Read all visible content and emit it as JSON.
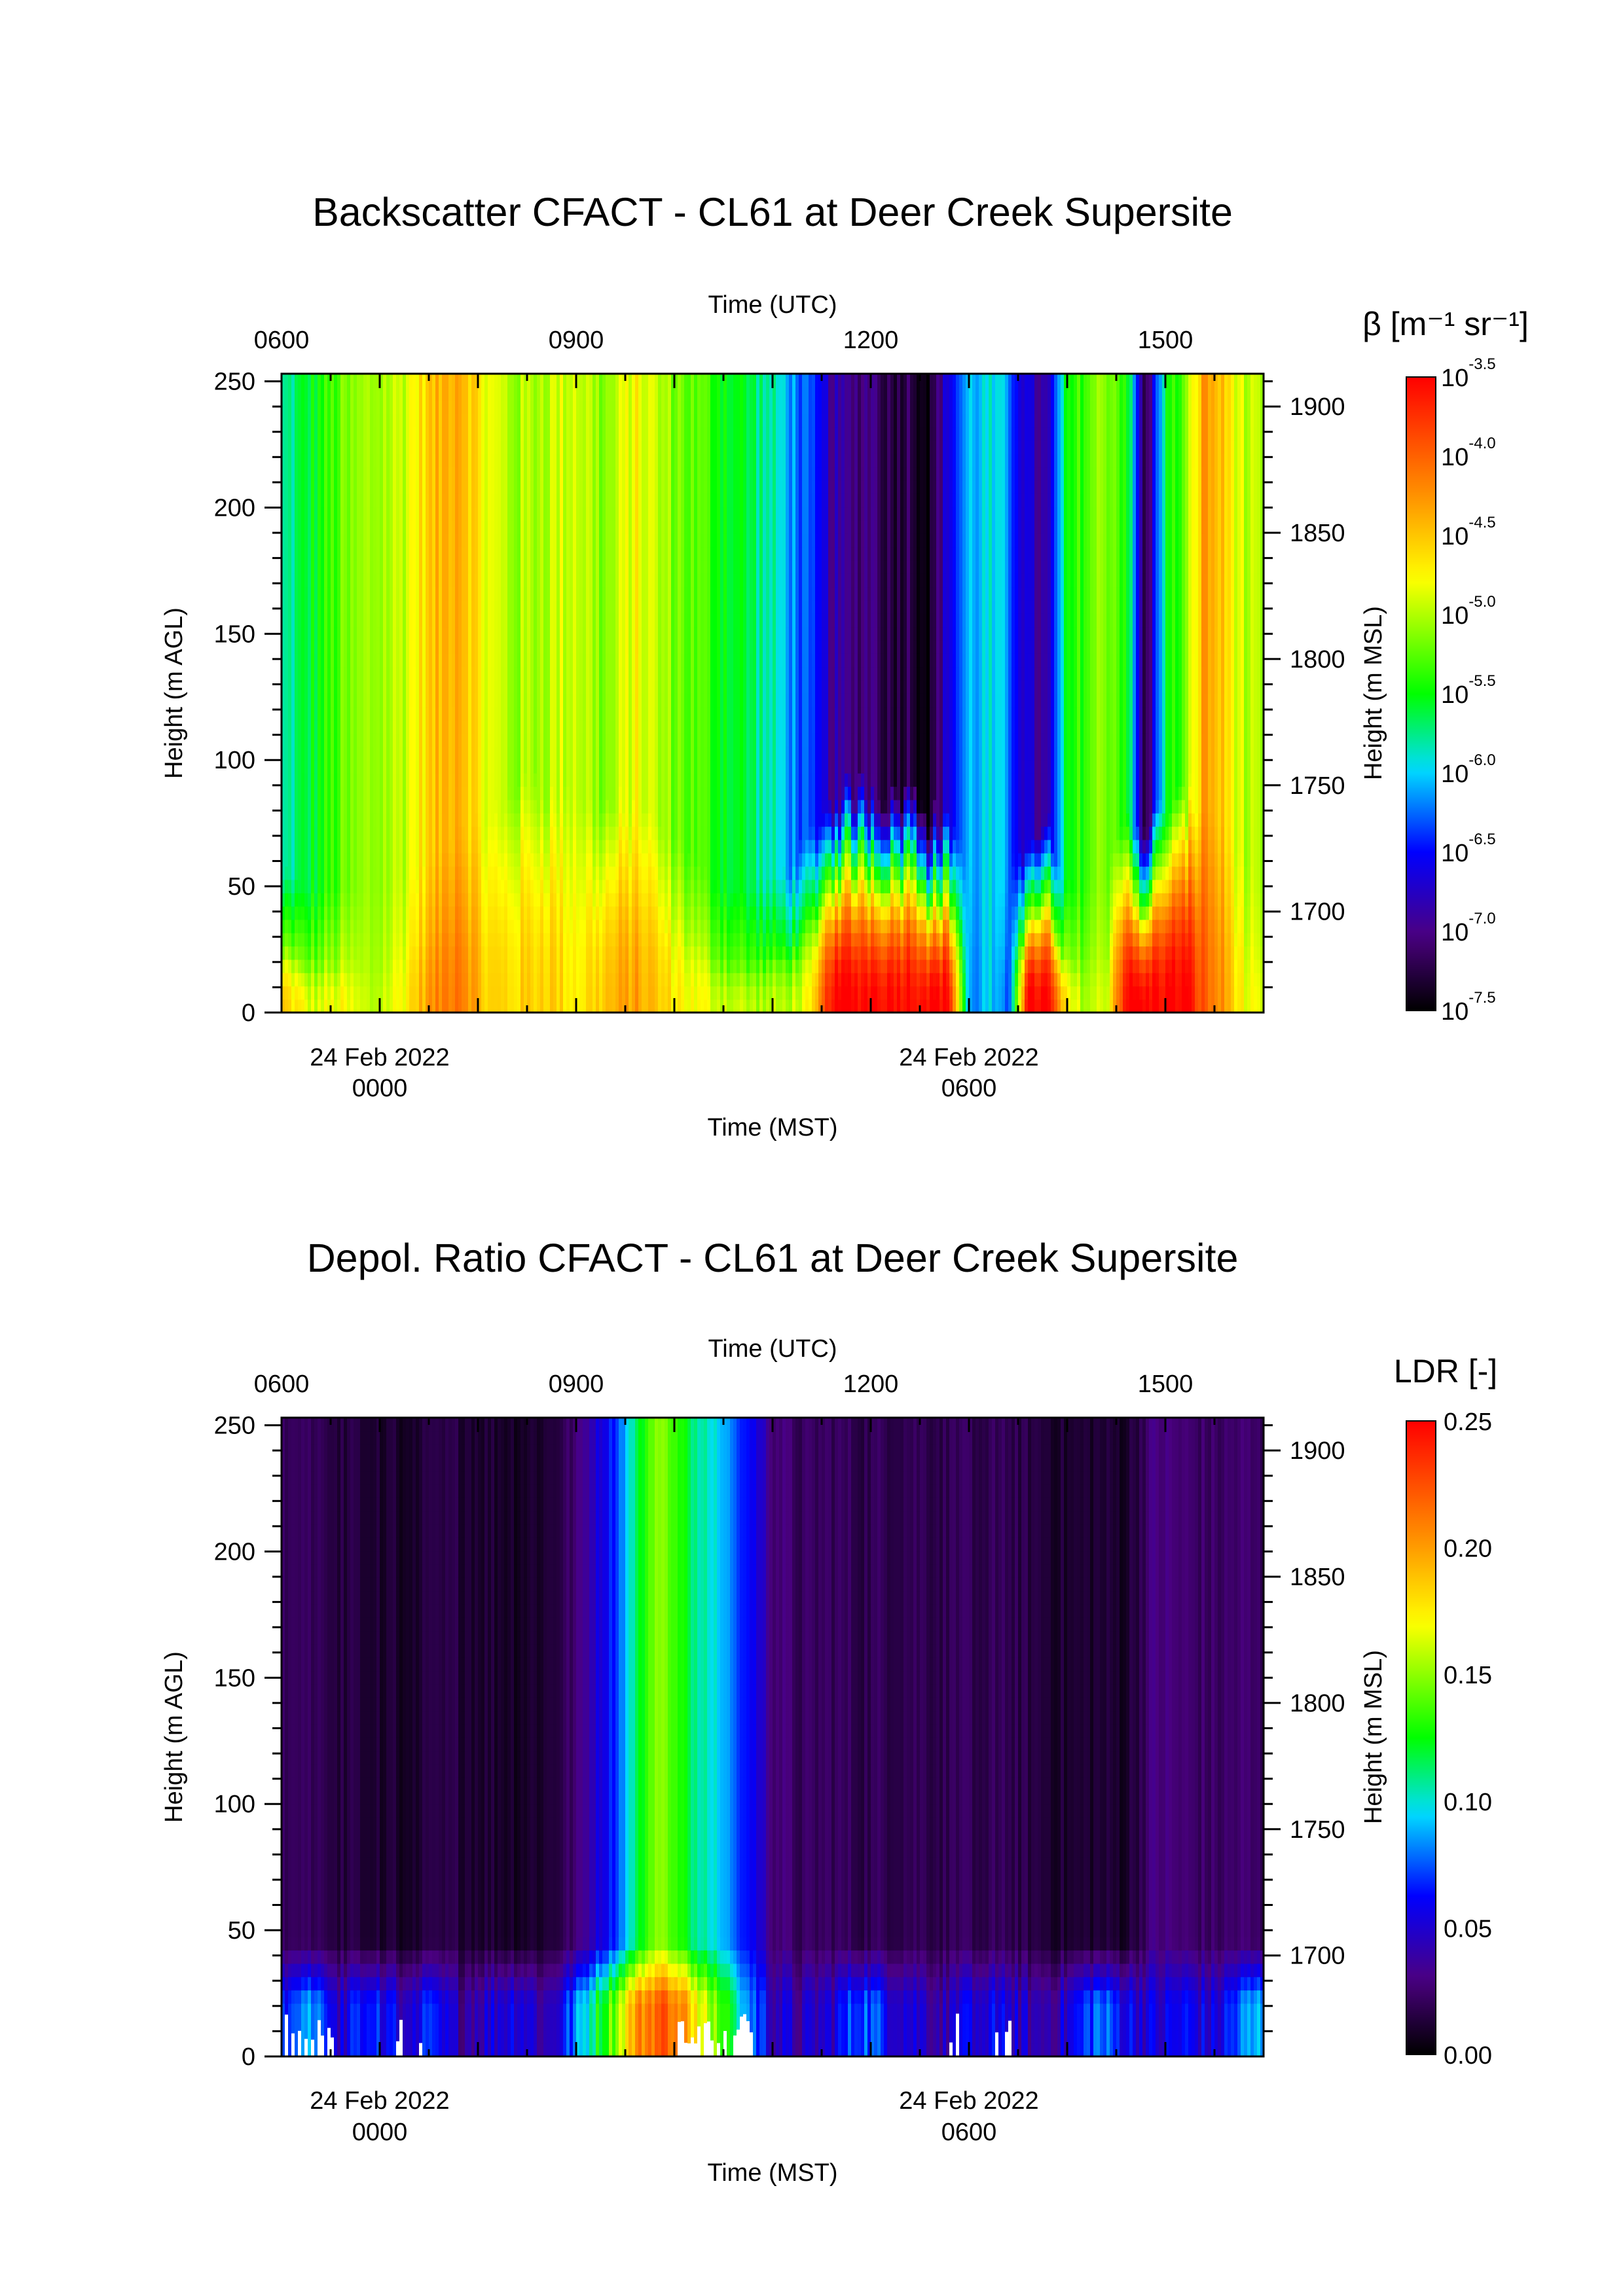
{
  "chart_data": [
    {
      "type": "heatmap",
      "title": "Backscatter CFACT - CL61 at Deer Creek Supersite",
      "xlabel_top": "Time (UTC)",
      "xlabel_bottom": "Time (MST)",
      "ylabel_left": "Height (m AGL)",
      "ylabel_right": "Height (m MSL)",
      "x_utc_range": [
        6.0,
        16.0
      ],
      "ylim": [
        0,
        253
      ],
      "top_ticks": [
        {
          "x": 6,
          "label": "0600"
        },
        {
          "x": 9,
          "label": "0900"
        },
        {
          "x": 12,
          "label": "1200"
        },
        {
          "x": 15,
          "label": "1500"
        }
      ],
      "bottom_ticks": [
        {
          "x": 7,
          "line1": "24 Feb 2022",
          "line2": "0000"
        },
        {
          "x": 13,
          "line1": "24 Feb 2022",
          "line2": "0600"
        }
      ],
      "left_ticks": [
        {
          "y": 0,
          "label": "0"
        },
        {
          "y": 50,
          "label": "50"
        },
        {
          "y": 100,
          "label": "100"
        },
        {
          "y": 150,
          "label": "150"
        },
        {
          "y": 200,
          "label": "200"
        },
        {
          "y": 250,
          "label": "250"
        }
      ],
      "right_ticks": [
        {
          "y": 40,
          "label": "1700"
        },
        {
          "y": 90,
          "label": "1750"
        },
        {
          "y": 140,
          "label": "1800"
        },
        {
          "y": 190,
          "label": "1850"
        },
        {
          "y": 240,
          "label": "1900"
        }
      ],
      "colorbar": {
        "label": "β [m⁻¹ sr⁻¹]",
        "scale": "log",
        "range": [
          -7.5,
          -3.5
        ],
        "ticks": [
          {
            "v": -3.5,
            "base": "10",
            "exp": "-3.5"
          },
          {
            "v": -4.0,
            "base": "10",
            "exp": "-4.0"
          },
          {
            "v": -4.5,
            "base": "10",
            "exp": "-4.5"
          },
          {
            "v": -5.0,
            "base": "10",
            "exp": "-5.0"
          },
          {
            "v": -5.5,
            "base": "10",
            "exp": "-5.5"
          },
          {
            "v": -6.0,
            "base": "10",
            "exp": "-6.0"
          },
          {
            "v": -6.5,
            "base": "10",
            "exp": "-6.5"
          },
          {
            "v": -7.0,
            "base": "10",
            "exp": "-7.0"
          },
          {
            "v": -7.5,
            "base": "10",
            "exp": "-7.5"
          }
        ]
      },
      "profile_utc_hours": [
        6.0,
        6.3,
        6.6,
        6.9,
        7.2,
        7.5,
        7.8,
        8.1,
        8.4,
        8.7,
        9.0,
        9.3,
        9.6,
        9.9,
        10.2,
        10.5,
        10.8,
        11.1,
        11.4,
        11.6,
        11.8,
        12.0,
        12.2,
        12.4,
        12.6,
        12.8,
        13.0,
        13.2,
        13.4,
        13.6,
        13.8,
        14.0,
        14.2,
        14.4,
        14.6,
        14.8,
        15.0,
        15.2,
        15.4,
        15.6,
        15.8,
        16.0
      ],
      "aloft_log_beta": [
        -5.9,
        -5.6,
        -5.3,
        -5.1,
        -5.0,
        -4.6,
        -4.3,
        -4.9,
        -5.1,
        -5.0,
        -4.9,
        -5.2,
        -4.8,
        -5.1,
        -5.3,
        -5.5,
        -5.7,
        -6.0,
        -6.5,
        -6.9,
        -7.1,
        -7.0,
        -7.3,
        -7.2,
        -7.5,
        -6.6,
        -6.1,
        -6.0,
        -6.2,
        -6.8,
        -7.0,
        -5.6,
        -5.3,
        -5.1,
        -5.4,
        -7.4,
        -5.6,
        -5.3,
        -4.3,
        -4.6,
        -5.0,
        -5.2
      ],
      "surface_log_beta": [
        -4.5,
        -4.9,
        -4.8,
        -5.0,
        -4.8,
        -4.3,
        -4.0,
        -4.6,
        -4.6,
        -4.5,
        -4.7,
        -4.5,
        -4.3,
        -4.6,
        -4.8,
        -4.9,
        -5.0,
        -5.0,
        -4.8,
        -3.5,
        -3.5,
        -3.5,
        -3.5,
        -3.5,
        -3.5,
        -3.5,
        -6.2,
        -6.0,
        -6.4,
        -3.5,
        -3.5,
        -4.8,
        -5.0,
        -4.9,
        -3.5,
        -3.5,
        -3.5,
        -3.5,
        -4.0,
        -4.3,
        -4.8,
        -5.0
      ],
      "surface_layer_top_m": [
        25,
        20,
        20,
        20,
        25,
        30,
        40,
        45,
        60,
        60,
        50,
        55,
        50,
        40,
        30,
        20,
        20,
        25,
        40,
        55,
        60,
        60,
        55,
        60,
        50,
        45,
        30,
        25,
        25,
        40,
        45,
        20,
        25,
        25,
        45,
        45,
        50,
        55,
        55,
        45,
        30,
        25
      ]
    },
    {
      "type": "heatmap",
      "title": "Depol. Ratio CFACT - CL61 at Deer Creek Supersite",
      "xlabel_top": "Time (UTC)",
      "xlabel_bottom": "Time (MST)",
      "ylabel_left": "Height (m AGL)",
      "ylabel_right": "Height (m MSL)",
      "x_utc_range": [
        6.0,
        16.0
      ],
      "ylim": [
        0,
        253
      ],
      "top_ticks": [
        {
          "x": 6,
          "label": "0600"
        },
        {
          "x": 9,
          "label": "0900"
        },
        {
          "x": 12,
          "label": "1200"
        },
        {
          "x": 15,
          "label": "1500"
        }
      ],
      "bottom_ticks": [
        {
          "x": 7,
          "line1": "24 Feb 2022",
          "line2": "0000"
        },
        {
          "x": 13,
          "line1": "24 Feb 2022",
          "line2": "0600"
        }
      ],
      "left_ticks": [
        {
          "y": 0,
          "label": "0"
        },
        {
          "y": 50,
          "label": "50"
        },
        {
          "y": 100,
          "label": "100"
        },
        {
          "y": 150,
          "label": "150"
        },
        {
          "y": 200,
          "label": "200"
        },
        {
          "y": 250,
          "label": "250"
        }
      ],
      "right_ticks": [
        {
          "y": 40,
          "label": "1700"
        },
        {
          "y": 90,
          "label": "1750"
        },
        {
          "y": 140,
          "label": "1800"
        },
        {
          "y": 190,
          "label": "1850"
        },
        {
          "y": 240,
          "label": "1900"
        }
      ],
      "colorbar": {
        "label": "LDR [-]",
        "scale": "linear",
        "range": [
          0.0,
          0.25
        ],
        "ticks": [
          {
            "v": 0.25,
            "label": "0.25"
          },
          {
            "v": 0.2,
            "label": "0.20"
          },
          {
            "v": 0.15,
            "label": "0.15"
          },
          {
            "v": 0.1,
            "label": "0.10"
          },
          {
            "v": 0.05,
            "label": "0.05"
          },
          {
            "v": 0.0,
            "label": "0.00"
          }
        ]
      },
      "profile_utc_hours": [
        6.0,
        6.3,
        6.6,
        6.9,
        7.2,
        7.5,
        7.8,
        8.1,
        8.4,
        8.7,
        9.0,
        9.2,
        9.4,
        9.6,
        9.8,
        10.0,
        10.2,
        10.4,
        10.6,
        10.8,
        11.0,
        11.3,
        11.6,
        11.9,
        12.2,
        12.5,
        12.8,
        13.1,
        13.4,
        13.7,
        14.0,
        14.3,
        14.6,
        14.9,
        15.2,
        15.5,
        15.8,
        16.0
      ],
      "aloft_ldr": [
        0.02,
        0.018,
        0.015,
        0.012,
        0.01,
        0.012,
        0.015,
        0.012,
        0.01,
        0.012,
        0.025,
        0.05,
        0.07,
        0.11,
        0.15,
        0.14,
        0.11,
        0.1,
        0.08,
        0.06,
        0.03,
        0.02,
        0.022,
        0.018,
        0.02,
        0.02,
        0.018,
        0.02,
        0.018,
        0.015,
        0.01,
        0.012,
        0.01,
        0.03,
        0.025,
        0.022,
        0.025,
        0.02
      ],
      "near_surface_ldr": [
        0.06,
        0.08,
        0.05,
        0.07,
        0.05,
        0.06,
        0.04,
        0.05,
        0.06,
        0.04,
        0.08,
        0.12,
        0.15,
        0.2,
        0.22,
        0.22,
        0.18,
        0.15,
        0.12,
        0.08,
        0.05,
        0.04,
        0.05,
        0.08,
        0.06,
        0.05,
        0.04,
        0.06,
        0.05,
        0.04,
        0.05,
        0.08,
        0.06,
        0.05,
        0.06,
        0.05,
        0.08,
        0.09
      ]
    }
  ]
}
